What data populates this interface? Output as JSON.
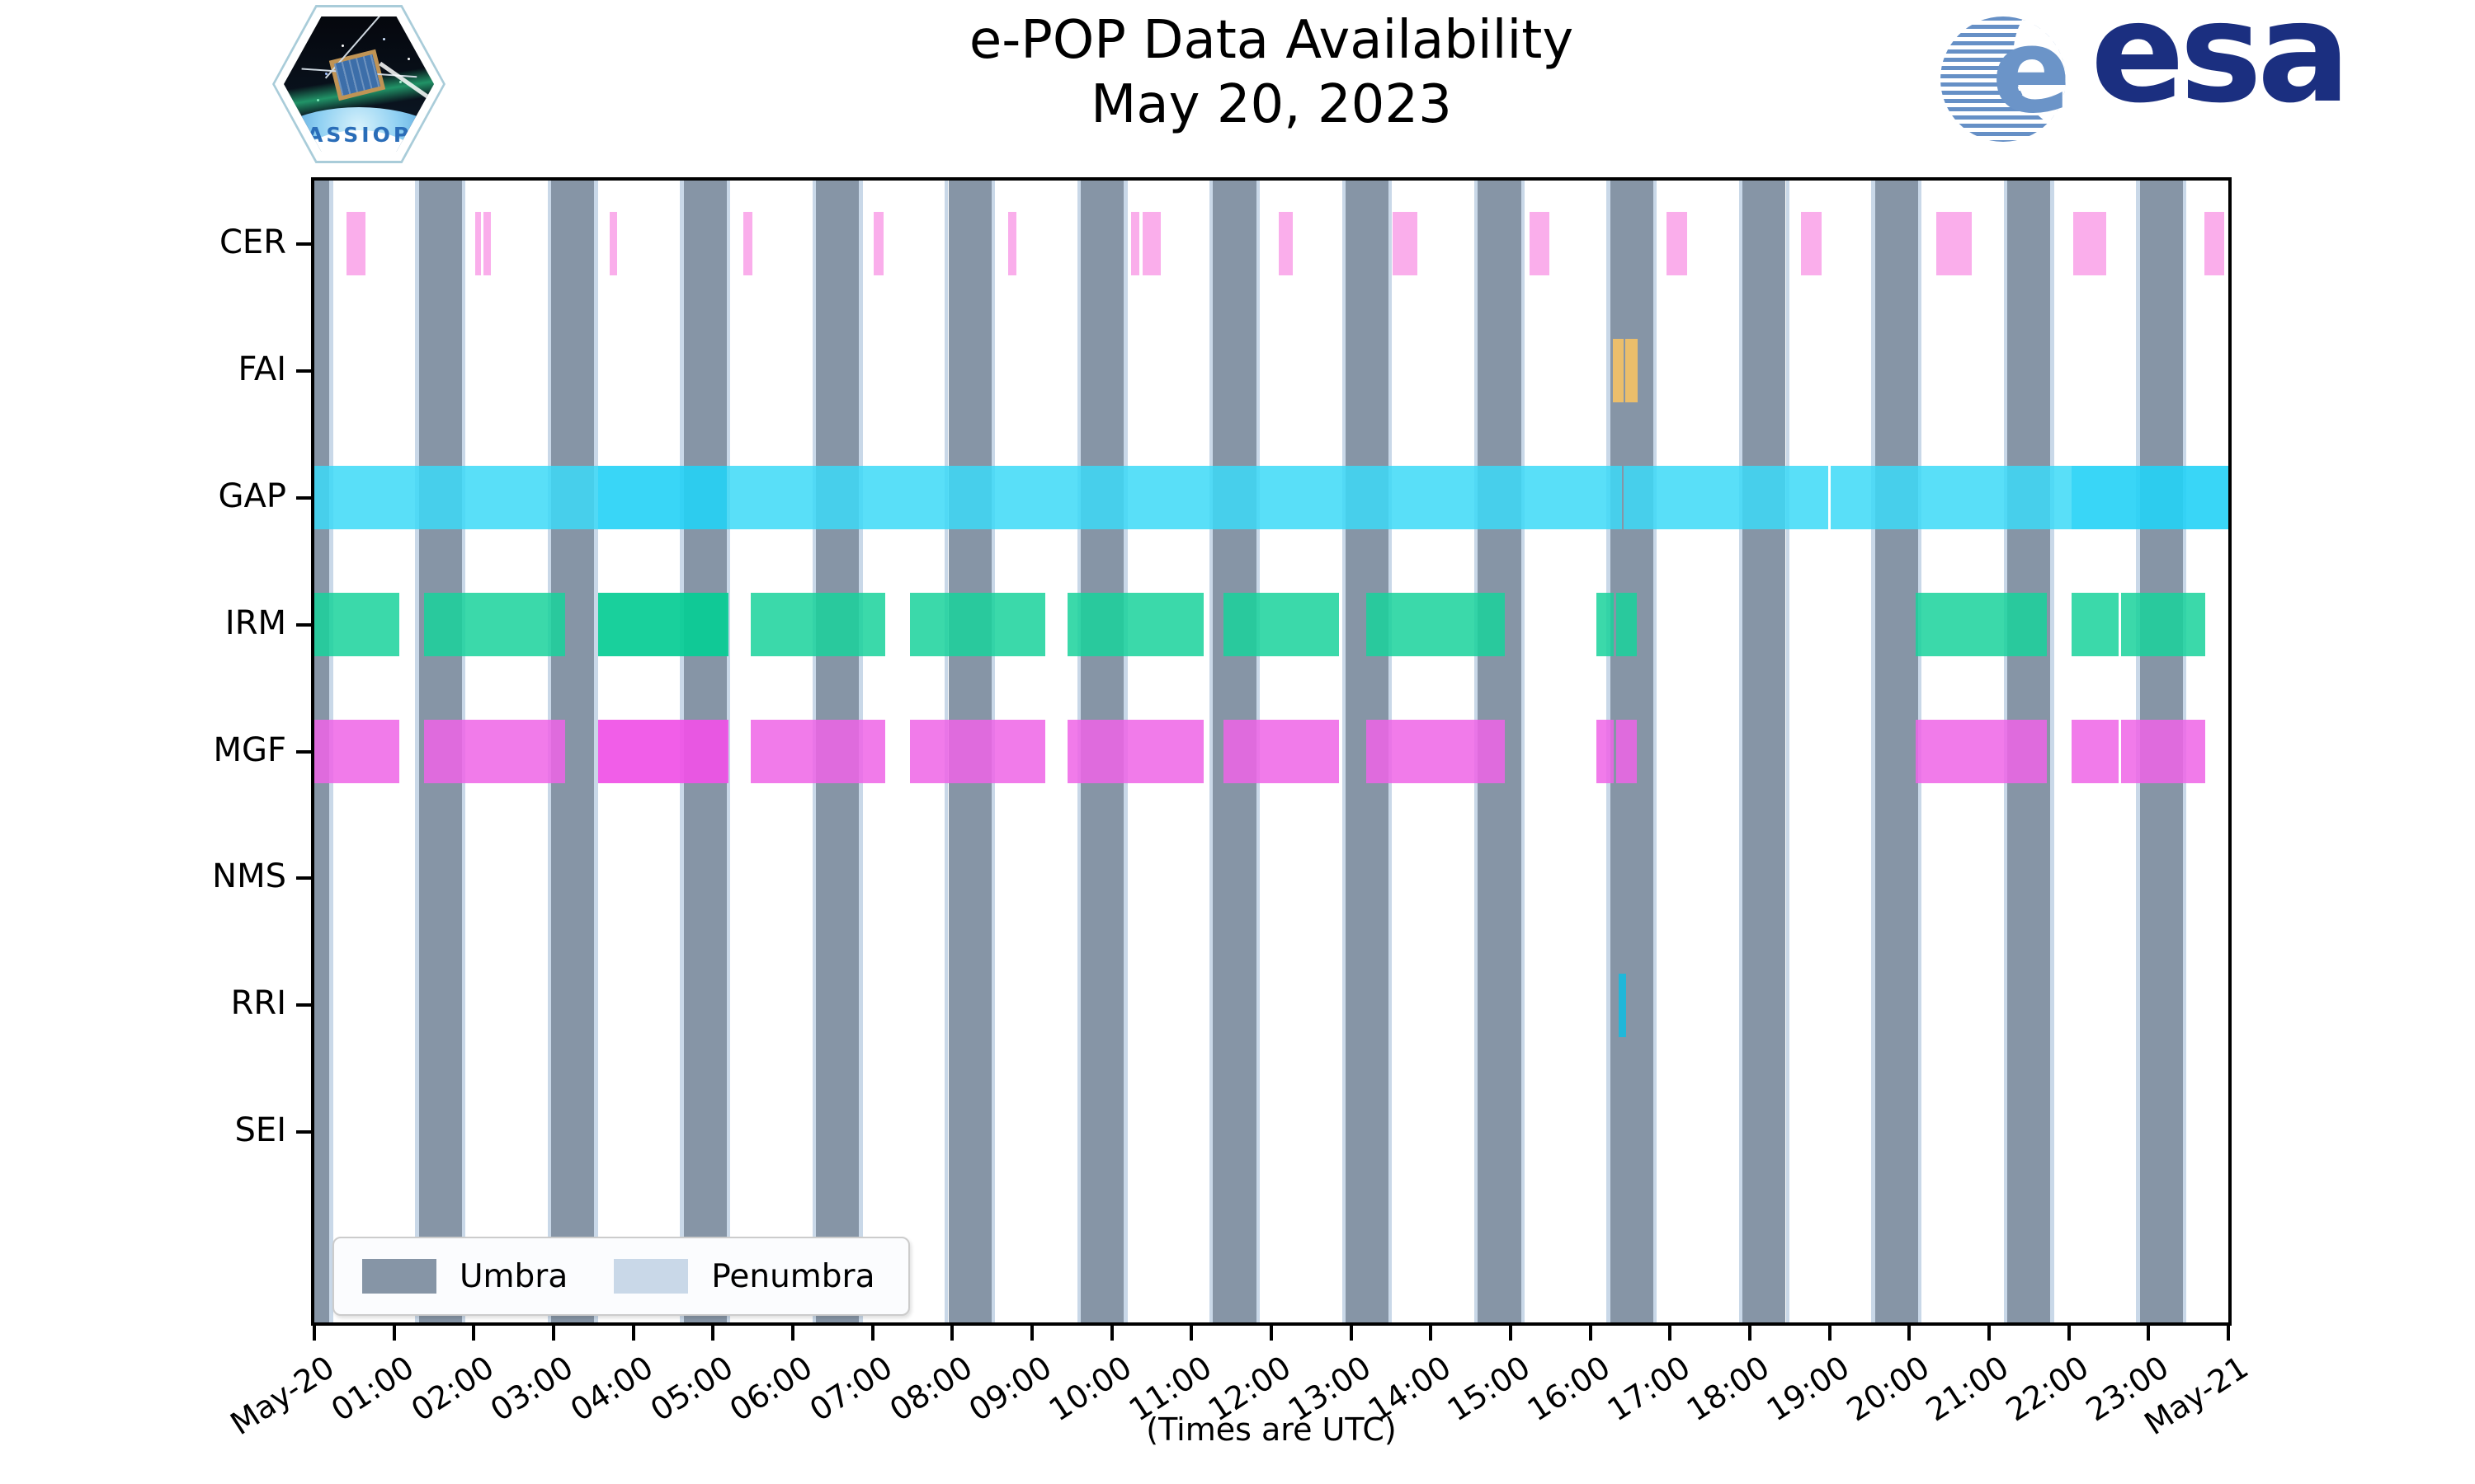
{
  "title": {
    "line1": "e-POP Data Availability",
    "line2": "May 20, 2023"
  },
  "logos": {
    "cassiope": "CASSIOPE",
    "esa_wordmark": "esa",
    "esa_e": "e"
  },
  "axis": {
    "tick_labels": [
      "May-20",
      "01:00",
      "02:00",
      "03:00",
      "04:00",
      "05:00",
      "06:00",
      "07:00",
      "08:00",
      "09:00",
      "10:00",
      "11:00",
      "12:00",
      "13:00",
      "14:00",
      "15:00",
      "16:00",
      "17:00",
      "18:00",
      "19:00",
      "20:00",
      "21:00",
      "22:00",
      "23:00",
      "May-21"
    ],
    "caption": "(Times are UTC)"
  },
  "legend": {
    "items": [
      {
        "label": "Umbra",
        "color": "#8695A6"
      },
      {
        "label": "Penumbra",
        "color": "#C9D8E8"
      }
    ]
  },
  "colors": {
    "umbra": "#8695A6",
    "penumbra": "#C9D8E8",
    "CER": "#FAAEEB",
    "FAI": "#EBBE6B",
    "RRI": "#21B7D9",
    "GAP1": "rgba(60,217,247,0.85)",
    "GAP2": "rgba(35,210,246,0.90)",
    "IRM1": "rgba(25,210,155,0.85)",
    "IRM2": "rgba(8,204,148,0.93)",
    "MGF1": "rgba(238,100,230,0.85)",
    "MGF2": "rgba(240,82,230,0.93)"
  },
  "chart_data": {
    "type": "timeline",
    "title": "e-POP Data Availability May 20, 2023",
    "x_unit": "hours UTC",
    "x_range_hours": [
      0,
      24
    ],
    "row_labels": [
      "CER",
      "FAI",
      "GAP",
      "IRM",
      "MGF",
      "NMS",
      "RRI",
      "SEI"
    ],
    "umbra_intervals_hours": [
      [
        0.0,
        0.19
      ],
      [
        1.31,
        1.85
      ],
      [
        2.97,
        3.51
      ],
      [
        4.63,
        5.17
      ],
      [
        6.29,
        6.83
      ],
      [
        7.95,
        8.49
      ],
      [
        9.61,
        10.15
      ],
      [
        11.27,
        11.81
      ],
      [
        12.93,
        13.47
      ],
      [
        14.59,
        15.13
      ],
      [
        16.25,
        16.79
      ],
      [
        17.91,
        18.45
      ],
      [
        19.57,
        20.11
      ],
      [
        21.23,
        21.77
      ],
      [
        22.89,
        23.43
      ]
    ],
    "penumbra_edge_width_hours": 0.045,
    "series": {
      "CER": [
        [
          0.4,
          0.64
        ],
        [
          2.02,
          2.09
        ],
        [
          2.12,
          2.21
        ],
        [
          3.7,
          3.8
        ],
        [
          5.38,
          5.49
        ],
        [
          7.01,
          7.14
        ],
        [
          8.7,
          8.8
        ],
        [
          10.24,
          10.34
        ],
        [
          10.39,
          10.61
        ],
        [
          12.09,
          12.27
        ],
        [
          13.52,
          13.83
        ],
        [
          15.24,
          15.49
        ],
        [
          16.95,
          17.21
        ],
        [
          18.64,
          18.9
        ],
        [
          20.34,
          20.78
        ],
        [
          22.06,
          22.47
        ],
        [
          23.7,
          23.95
        ]
      ],
      "FAI": [
        [
          16.28,
          16.42
        ],
        [
          16.44,
          16.59
        ]
      ],
      "GAP": [
        [
          0.0,
          3.56
        ],
        [
          3.56,
          5.17,
          2
        ],
        [
          5.17,
          16.4
        ],
        [
          16.42,
          18.98
        ],
        [
          19.01,
          22.03
        ],
        [
          22.03,
          24.0,
          2
        ]
      ],
      "IRM": [
        [
          0.0,
          1.07
        ],
        [
          1.38,
          3.15
        ],
        [
          3.56,
          5.19,
          2
        ],
        [
          5.47,
          7.16
        ],
        [
          7.47,
          9.17
        ],
        [
          9.44,
          11.15
        ],
        [
          11.4,
          12.85
        ],
        [
          13.19,
          14.93
        ],
        [
          16.08,
          16.29
        ],
        [
          16.32,
          16.58
        ],
        [
          20.08,
          21.72
        ],
        [
          22.03,
          22.62
        ],
        [
          22.65,
          23.71
        ]
      ],
      "MGF": [
        [
          0.0,
          1.07
        ],
        [
          1.38,
          3.15
        ],
        [
          3.56,
          5.19,
          2
        ],
        [
          5.47,
          7.16
        ],
        [
          7.47,
          9.17
        ],
        [
          9.44,
          11.15
        ],
        [
          11.4,
          12.85
        ],
        [
          13.19,
          14.93
        ],
        [
          16.08,
          16.29
        ],
        [
          16.32,
          16.58
        ],
        [
          20.08,
          21.72
        ],
        [
          22.03,
          22.62
        ],
        [
          22.65,
          23.71
        ]
      ],
      "NMS": [],
      "RRI": [
        [
          16.36,
          16.45
        ]
      ],
      "SEI": []
    }
  }
}
